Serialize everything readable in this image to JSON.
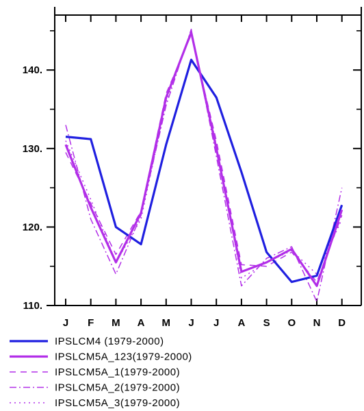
{
  "chart_data": {
    "type": "line",
    "categories": [
      "J",
      "F",
      "M",
      "A",
      "M",
      "J",
      "J",
      "A",
      "S",
      "O",
      "N",
      "D"
    ],
    "ylim": [
      110,
      147
    ],
    "yticks_major": [
      110,
      120,
      130,
      140
    ],
    "ytick_labels": [
      "110.",
      "120.",
      "130.",
      "140."
    ],
    "yticks_minor": [
      115,
      125,
      135,
      145
    ],
    "grid": false,
    "legend_position": "bottom",
    "series": [
      {
        "name": "IPSLCM4 (1979-2000)",
        "color": "#1f1fe0",
        "style": "solid",
        "width": 3.2,
        "values": [
          131.5,
          131.2,
          120.0,
          117.8,
          130.5,
          141.3,
          136.5,
          127.0,
          116.8,
          113.0,
          113.8,
          122.8
        ]
      },
      {
        "name": "IPSLCM5A_123(1979-2000)",
        "color": "#b22ee8",
        "style": "solid",
        "width": 3.2,
        "values": [
          130.5,
          122.5,
          115.5,
          121.8,
          136.5,
          144.8,
          130.0,
          114.3,
          115.5,
          117.2,
          112.5,
          122.2
        ]
      },
      {
        "name": "IPSLCM5A_1(1979-2000)",
        "color": "#b22ee8",
        "style": "dash",
        "width": 1.5,
        "values": [
          129.5,
          123.0,
          116.5,
          122.0,
          137.0,
          144.5,
          131.0,
          115.2,
          115.0,
          116.8,
          113.0,
          121.5
        ]
      },
      {
        "name": "IPSLCM5A_2(1979-2000)",
        "color": "#b22ee8",
        "style": "dashdot",
        "width": 1.5,
        "values": [
          133.0,
          121.0,
          114.0,
          121.5,
          135.5,
          145.2,
          129.0,
          112.5,
          116.0,
          117.5,
          110.5,
          125.0
        ]
      },
      {
        "name": "IPSLCM5A_3(1979-2000)",
        "color": "#b22ee8",
        "style": "dot",
        "width": 1.5,
        "values": [
          131.0,
          123.5,
          115.5,
          121.0,
          136.0,
          145.0,
          130.5,
          113.5,
          115.5,
          117.0,
          114.0,
          121.0
        ]
      }
    ]
  }
}
